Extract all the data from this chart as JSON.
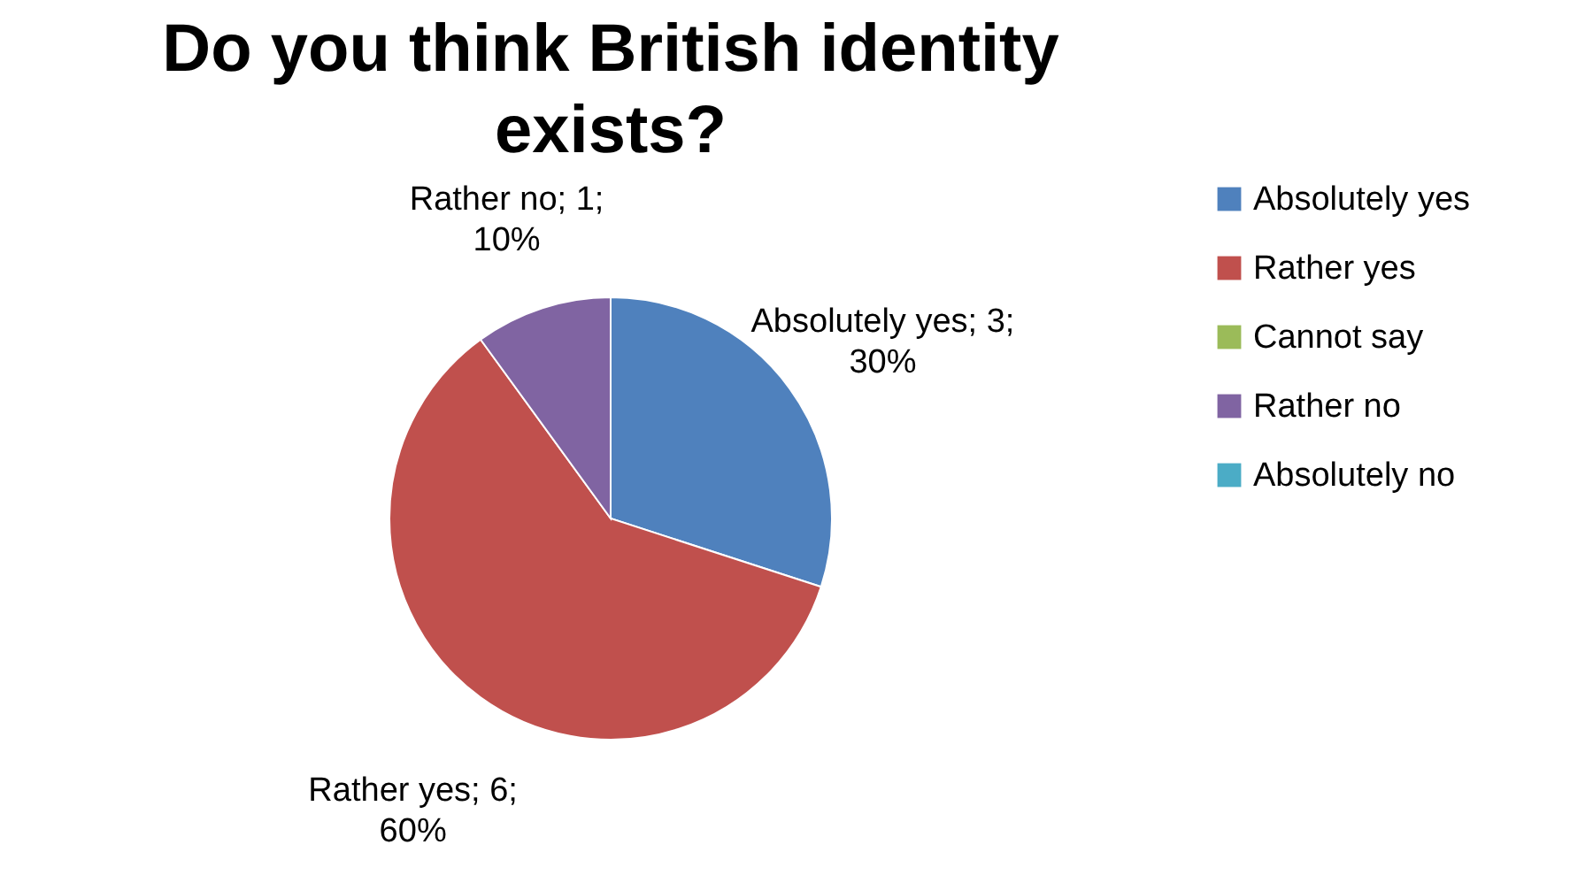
{
  "chart_data": {
    "type": "pie",
    "title": "Do you think British identity exists?",
    "categories": [
      "Absolutely yes",
      "Rather yes",
      "Cannot say",
      "Rather no",
      "Absolutely no"
    ],
    "values": [
      3,
      6,
      0,
      1,
      0
    ],
    "colors": [
      "#4f81bd",
      "#c0504d",
      "#9bbb59",
      "#8064a2",
      "#4bacc6"
    ],
    "value_labels": [
      "Absolutely yes; 3; 30%",
      "Rather yes; 6; 60%",
      null,
      "Rather no; 1; 10%",
      null
    ],
    "legend": "right"
  }
}
